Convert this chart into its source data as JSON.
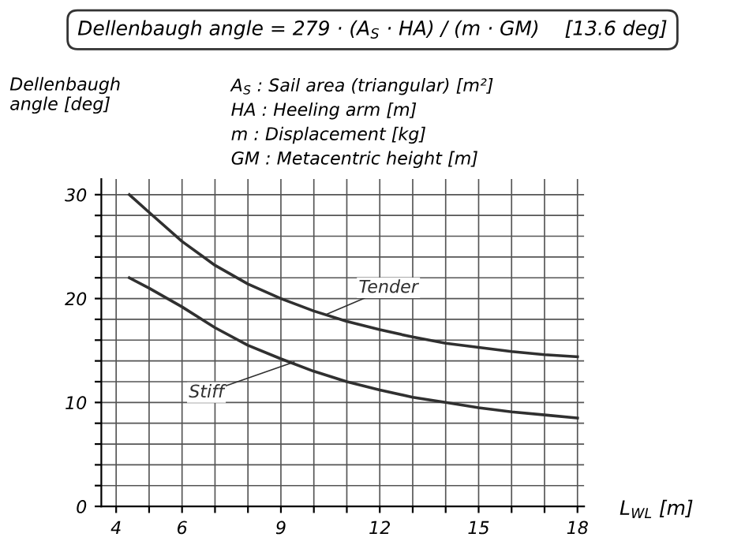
{
  "chart_data": {
    "type": "line",
    "title": "Dellenbaugh angle = 279 · (A$_{S}$ · HA) / (m · GM)    [13.6 deg]",
    "xlabel": "L$_{WL}$ [m]",
    "ylabel": "Dellenbaugh\nangle [deg]",
    "annotations": [
      "A$_{S}$ : Sail area (triangular) [m²]",
      "HA : Heeling arm [m]",
      "m : Displacement [kg]",
      "GM : Metacentric height [m]"
    ],
    "x": [
      4.4,
      5,
      6,
      7,
      8,
      9,
      10,
      11,
      12,
      13,
      14,
      15,
      16,
      17,
      18
    ],
    "series": [
      {
        "name": "Tender",
        "color": "#303030",
        "values": [
          30,
          28.3,
          25.5,
          23.2,
          21.4,
          20,
          18.8,
          17.8,
          17,
          16.3,
          15.7,
          15.3,
          14.9,
          14.6,
          14.4
        ]
      },
      {
        "name": "Stiff",
        "color": "#303030",
        "values": [
          22,
          21,
          19.2,
          17.2,
          15.5,
          14.2,
          13,
          12,
          11.2,
          10.5,
          10,
          9.5,
          9.1,
          8.8,
          8.5
        ]
      }
    ],
    "xlim": [
      3.55,
      18.2
    ],
    "ylim": [
      0,
      31.5
    ],
    "xticks": [
      4,
      {
        "value": 5,
        "label": null
      },
      6,
      {
        "value": 7,
        "label": null
      },
      {
        "value": 8,
        "label": null
      },
      9,
      {
        "value": 10,
        "label": null
      },
      {
        "value": 11,
        "label": null
      },
      12,
      {
        "value": 13,
        "label": null
      },
      {
        "value": 14,
        "label": null
      },
      15,
      {
        "value": 16,
        "label": null
      },
      {
        "value": 17,
        "label": null
      },
      18
    ],
    "yticks": [
      0,
      {
        "value": 2,
        "label": null
      },
      {
        "value": 4,
        "label": null
      },
      {
        "value": 6,
        "label": null
      },
      {
        "value": 8,
        "label": null
      },
      10,
      {
        "value": 12,
        "label": null
      },
      {
        "value": 14,
        "label": null
      },
      {
        "value": 16,
        "label": null
      },
      {
        "value": 18,
        "label": null
      },
      20,
      {
        "value": 22,
        "label": null
      },
      {
        "value": 24,
        "label": null
      },
      {
        "value": 26,
        "label": null
      },
      {
        "value": 28,
        "label": null
      },
      30
    ],
    "grid": true,
    "legend": false,
    "marker": "none",
    "line_style": "solid"
  }
}
